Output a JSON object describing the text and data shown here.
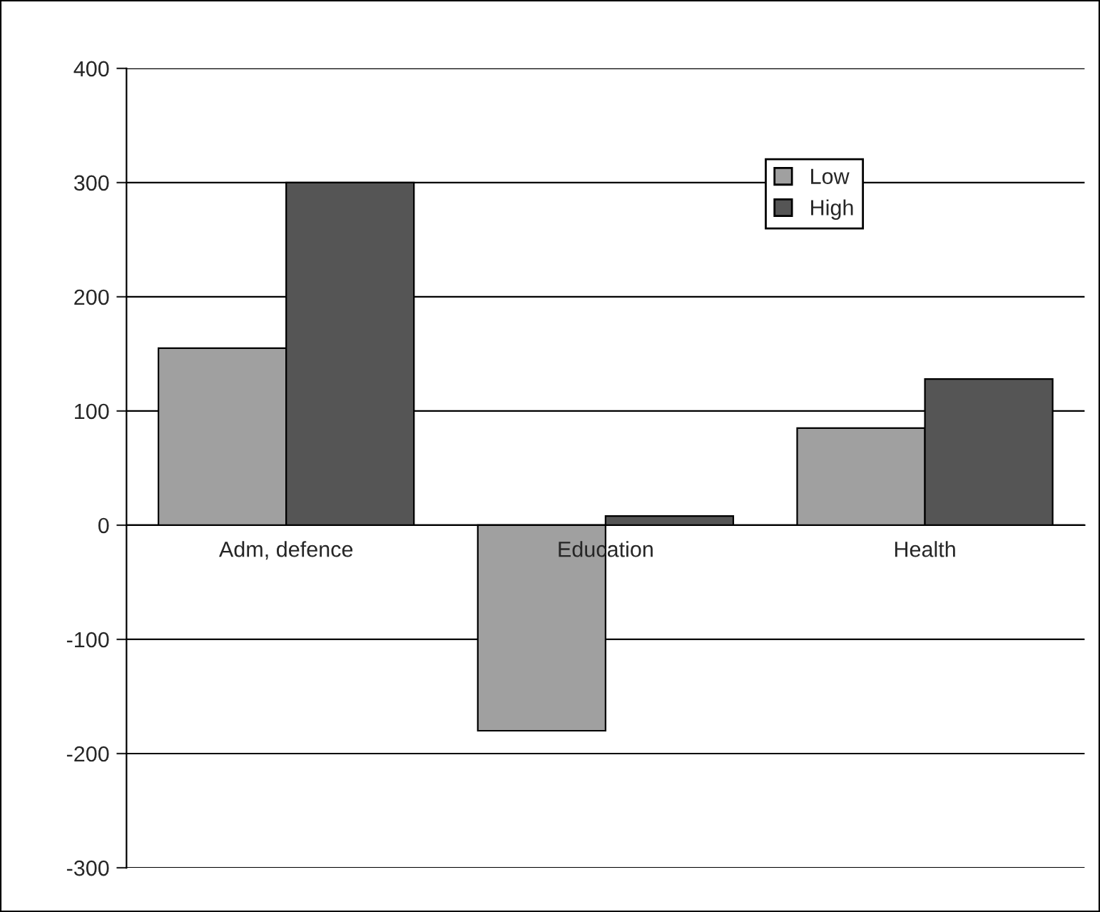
{
  "chart_data": {
    "type": "bar",
    "categories": [
      "Adm, defence",
      "Education",
      "Health"
    ],
    "series": [
      {
        "name": "Low",
        "color": "#a0a0a0",
        "values": [
          155,
          -180,
          85
        ]
      },
      {
        "name": "High",
        "color": "#555555",
        "values": [
          300,
          8,
          128
        ]
      }
    ],
    "ylim": [
      -300,
      400
    ],
    "yticks": [
      -300,
      -200,
      -100,
      0,
      100,
      200,
      300,
      400
    ],
    "grid": "y",
    "legend": "top right"
  }
}
